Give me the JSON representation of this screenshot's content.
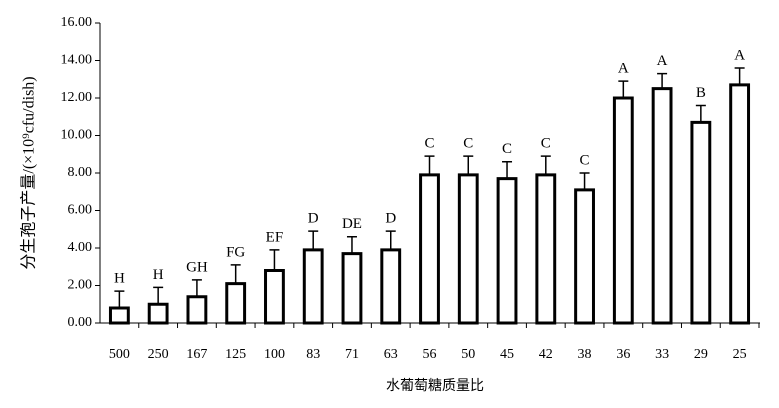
{
  "chart_data": {
    "type": "bar",
    "x_label": "水葡萄糖质量比",
    "y_label": "分生孢子产量/(×10⁹cfu/dish)",
    "categories": [
      "500",
      "250",
      "167",
      "125",
      "100",
      "83",
      "71",
      "63",
      "56",
      "50",
      "45",
      "42",
      "38",
      "36",
      "33",
      "29",
      "25"
    ],
    "values": [
      0.8,
      1.0,
      1.4,
      2.1,
      2.8,
      3.9,
      3.7,
      3.9,
      7.9,
      7.9,
      7.7,
      7.9,
      7.1,
      12.0,
      12.5,
      10.7,
      12.7
    ],
    "errors": [
      0.9,
      0.9,
      0.9,
      1.0,
      1.1,
      1.0,
      0.9,
      1.0,
      1.0,
      1.0,
      0.9,
      1.0,
      0.9,
      0.9,
      0.8,
      0.9,
      0.9
    ],
    "annotations": [
      "H",
      "H",
      "GH",
      "FG",
      "EF",
      "D",
      "DE",
      "D",
      "C",
      "C",
      "C",
      "C",
      "C",
      "A",
      "A",
      "B",
      "A"
    ],
    "color": "#ffffff",
    "ylim": [
      0,
      16
    ],
    "yticks": [
      {
        "value": 0,
        "label": "0.00"
      },
      {
        "value": 2,
        "label": "2.00"
      },
      {
        "value": 4,
        "label": "4.00"
      },
      {
        "value": 6,
        "label": "6.00"
      },
      {
        "value": 8,
        "label": "8.00"
      },
      {
        "value": 10,
        "label": "10.00"
      },
      {
        "value": 12,
        "label": "12.00"
      },
      {
        "value": 14,
        "label": "14.00"
      },
      {
        "value": 16,
        "label": "16.00"
      }
    ],
    "grid": false
  }
}
